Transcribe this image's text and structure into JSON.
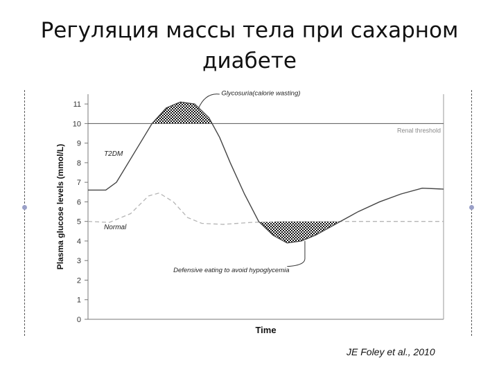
{
  "slide": {
    "title": "Регуляция массы тела при сахарном диабете",
    "citation": "JE Foley et al., 2010"
  },
  "colors": {
    "t2dm_line": "#444444",
    "normal_line": "#b5b5b5",
    "threshold_line": "#555555",
    "hatch": "#111111",
    "side_dot": "#9aa0c8"
  },
  "chart_data": {
    "type": "line",
    "xlabel": "Time",
    "ylabel": "Plasma glucose levels (mmol/L)",
    "ylim": [
      0,
      11.5
    ],
    "yticks": [
      0,
      1,
      2,
      3,
      4,
      5,
      6,
      7,
      8,
      9,
      10,
      11
    ],
    "x_ticks_labeled": false,
    "grid": false,
    "series": [
      {
        "name": "T2DM",
        "style": "solid",
        "points": [
          [
            0.0,
            6.6
          ],
          [
            0.05,
            6.6
          ],
          [
            0.08,
            7.0
          ],
          [
            0.14,
            8.8
          ],
          [
            0.18,
            10.0
          ],
          [
            0.22,
            10.8
          ],
          [
            0.26,
            11.1
          ],
          [
            0.3,
            11.0
          ],
          [
            0.34,
            10.3
          ],
          [
            0.37,
            9.3
          ],
          [
            0.4,
            8.0
          ],
          [
            0.44,
            6.4
          ],
          [
            0.48,
            5.0
          ],
          [
            0.52,
            4.3
          ],
          [
            0.56,
            3.9
          ],
          [
            0.6,
            4.0
          ],
          [
            0.64,
            4.3
          ],
          [
            0.7,
            4.9
          ],
          [
            0.76,
            5.5
          ],
          [
            0.82,
            6.0
          ],
          [
            0.88,
            6.4
          ],
          [
            0.94,
            6.7
          ],
          [
            1.0,
            6.65
          ]
        ]
      },
      {
        "name": "Normal",
        "style": "dashed",
        "points": [
          [
            0.0,
            5.0
          ],
          [
            0.06,
            4.95
          ],
          [
            0.12,
            5.4
          ],
          [
            0.17,
            6.3
          ],
          [
            0.2,
            6.45
          ],
          [
            0.24,
            6.0
          ],
          [
            0.28,
            5.2
          ],
          [
            0.32,
            4.9
          ],
          [
            0.38,
            4.85
          ],
          [
            0.46,
            4.95
          ],
          [
            0.55,
            5.0
          ],
          [
            0.7,
            5.0
          ],
          [
            0.85,
            5.0
          ],
          [
            1.0,
            5.0
          ]
        ]
      }
    ],
    "reference_lines": [
      {
        "label": "Renal threshold",
        "y": 10
      }
    ],
    "annotations": [
      {
        "text": "Glycosuria(calorie wasting)"
      },
      {
        "text": "Defensive eating to avoid hypoglycemia"
      }
    ],
    "shaded_regions": [
      {
        "kind": "above_threshold",
        "threshold": 10
      },
      {
        "kind": "below_normal",
        "threshold": 5
      }
    ]
  }
}
